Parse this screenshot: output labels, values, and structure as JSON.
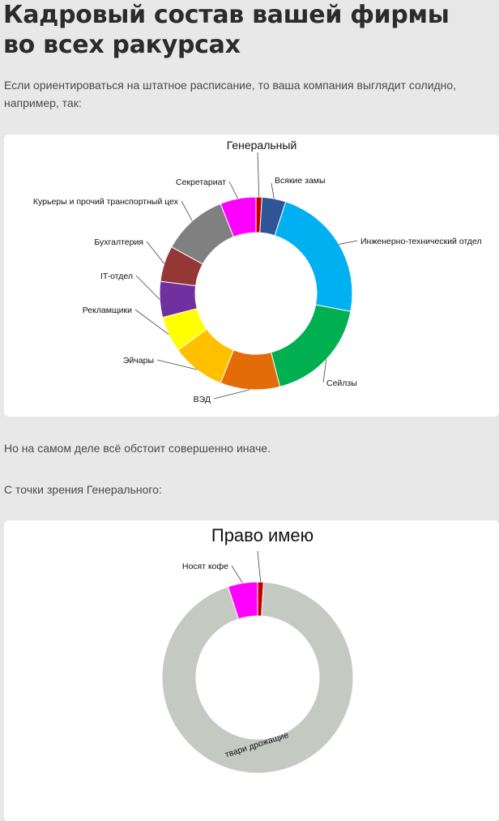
{
  "article": {
    "title_line1": "Кадровый состав вашей фирмы",
    "title_line2": "во всех ракурсах",
    "intro_line1": "Если ориентироваться на штатное расписание, то ваша компания выглядит солидно,",
    "intro_line2": "например, так:",
    "para2": "Но на самом деле всё обстоит совершенно иначе.",
    "para3": "С точки зрения Генерального:"
  },
  "chart_data": [
    {
      "type": "pie",
      "title": "Генеральный",
      "slices": [
        {
          "label": "Генеральный",
          "value": 1,
          "color": "#c00000"
        },
        {
          "label": "Всякие замы",
          "value": 4,
          "color": "#2f5597"
        },
        {
          "label": "Инженерно-технический отдел",
          "value": 23,
          "color": "#00b0f0"
        },
        {
          "label": "Сейлзы",
          "value": 18,
          "color": "#00b050"
        },
        {
          "label": "ВЭД",
          "value": 10,
          "color": "#e36c09"
        },
        {
          "label": "Эйчары",
          "value": 9,
          "color": "#ffc000"
        },
        {
          "label": "Рекламщики",
          "value": 6,
          "color": "#ffff00"
        },
        {
          "label": "IT-отдел",
          "value": 6,
          "color": "#7030a0"
        },
        {
          "label": "Бухгалтерия",
          "value": 6,
          "color": "#953735"
        },
        {
          "label": "Курьеры и прочий транспортный цех",
          "value": 11,
          "color": "#808080"
        },
        {
          "label": "Секретариат",
          "value": 6,
          "color": "#ff00ff"
        }
      ]
    },
    {
      "type": "pie",
      "title": "Право имею",
      "slices": [
        {
          "label": "Право имею",
          "value": 1,
          "color": "#c00000"
        },
        {
          "label": "твари дрожащие",
          "value": 94,
          "color": "#c4c9c2"
        },
        {
          "label": "Носят кофе",
          "value": 5,
          "color": "#ff00ff"
        }
      ]
    }
  ]
}
